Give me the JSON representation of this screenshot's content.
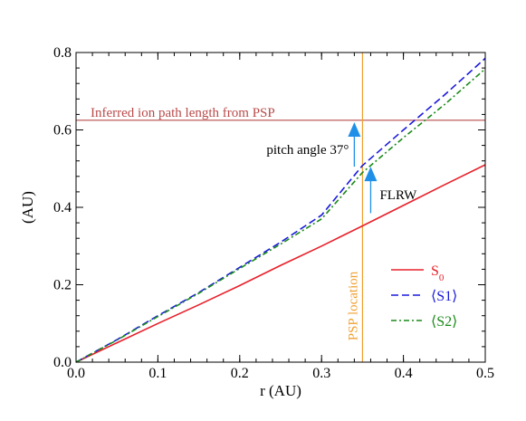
{
  "chart_data": {
    "type": "line",
    "xlabel": "r (AU)",
    "ylabel": "(AU)",
    "xlim": [
      0.0,
      0.5
    ],
    "ylim": [
      0.0,
      0.8
    ],
    "xticks": [
      "0.0",
      "0.1",
      "0.2",
      "0.3",
      "0.4",
      "0.5"
    ],
    "yticks": [
      "0.0",
      "0.2",
      "0.4",
      "0.6",
      "0.8"
    ],
    "grid": false,
    "legend": "lower-right",
    "series": [
      {
        "name": "S0",
        "name_base": "S",
        "name_sub": "0",
        "style": "solid",
        "color": "#e8202a",
        "x": [
          0.0,
          0.05,
          0.1,
          0.15,
          0.2,
          0.25,
          0.3,
          0.35,
          0.4,
          0.45,
          0.5
        ],
        "y": [
          0.0,
          0.05,
          0.1,
          0.148,
          0.198,
          0.25,
          0.3,
          0.352,
          0.405,
          0.458,
          0.51
        ]
      },
      {
        "name": "⟨S1⟩",
        "style": "dashed",
        "color": "#1a1adc",
        "x": [
          0.0,
          0.05,
          0.1,
          0.15,
          0.2,
          0.25,
          0.3,
          0.35,
          0.4,
          0.45,
          0.5
        ],
        "y": [
          0.0,
          0.058,
          0.12,
          0.18,
          0.245,
          0.31,
          0.38,
          0.508,
          0.6,
          0.69,
          0.785
        ]
      },
      {
        "name": "⟨S2⟩",
        "style": "dashdot",
        "color": "#1a8a1a",
        "x": [
          0.0,
          0.05,
          0.1,
          0.15,
          0.2,
          0.25,
          0.3,
          0.35,
          0.4,
          0.45,
          0.5
        ],
        "y": [
          0.0,
          0.057,
          0.118,
          0.178,
          0.242,
          0.305,
          0.37,
          0.49,
          0.58,
          0.665,
          0.758
        ]
      }
    ],
    "hline": {
      "y": 0.625,
      "label": "Inferred ion path length from PSP",
      "color": "#b84a4a"
    },
    "vline": {
      "x": 0.35,
      "label": "PSP location",
      "color": "#f0a030"
    },
    "annotations": [
      {
        "text": "pitch angle 37°",
        "arrow_x": 0.34,
        "arrow_y_from": 0.505,
        "arrow_y_to": 0.62,
        "color": "#1e90e8"
      },
      {
        "text": "FLRW",
        "arrow_x": 0.36,
        "arrow_y_from": 0.385,
        "arrow_y_to": 0.505,
        "color": "#1e90e8"
      }
    ]
  }
}
